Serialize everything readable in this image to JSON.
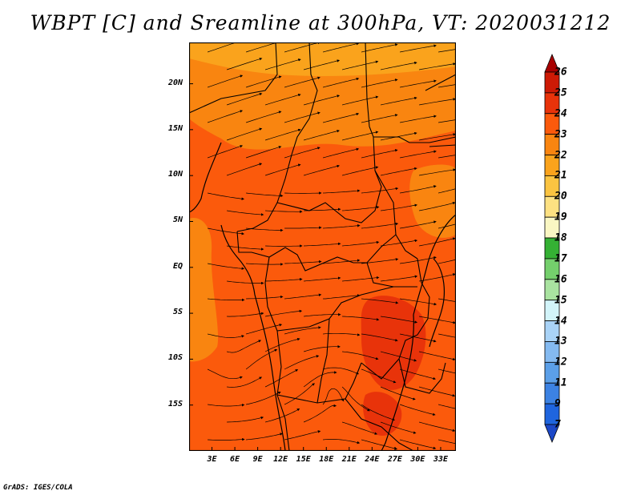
{
  "title": "WBPT [C] and Sreamline at 300hPa, VT: 2020031212",
  "footer": "GrADS: IGES/COLA",
  "map": {
    "lon_range": [
      0,
      35
    ],
    "lat_range": [
      -20,
      24.5
    ],
    "lat_labels": [
      "20N",
      "15N",
      "10N",
      "5N",
      "EQ",
      "5S",
      "10S",
      "15S"
    ],
    "lat_values": [
      20,
      15,
      10,
      5,
      0,
      -5,
      -10,
      -15
    ],
    "lon_labels": [
      "3E",
      "6E",
      "9E",
      "12E",
      "15E",
      "18E",
      "21E",
      "24E",
      "27E",
      "30E",
      "33E"
    ],
    "lon_values": [
      3,
      6,
      9,
      12,
      15,
      18,
      21,
      24,
      27,
      30,
      33
    ],
    "background_color": "#fb5a0c",
    "cooler_band_color": "#f98510",
    "warm_core_color": "#e8330a"
  },
  "colorbar": {
    "labels": [
      "26",
      "25",
      "24",
      "23",
      "22",
      "21",
      "20",
      "19",
      "18",
      "17",
      "16",
      "15",
      "14",
      "13",
      "12",
      "11",
      "9",
      "7"
    ],
    "colors": [
      "#a80000",
      "#cd1a05",
      "#e8330a",
      "#fb5a0c",
      "#f98510",
      "#faa31c",
      "#fbc441",
      "#fde182",
      "#faf7c3",
      "#35b134",
      "#74cf6c",
      "#a9e3a0",
      "#d2f4f9",
      "#a9d3f7",
      "#84baf1",
      "#5b9fe8",
      "#3c82e3",
      "#1f65de",
      "#1c48c8"
    ]
  }
}
